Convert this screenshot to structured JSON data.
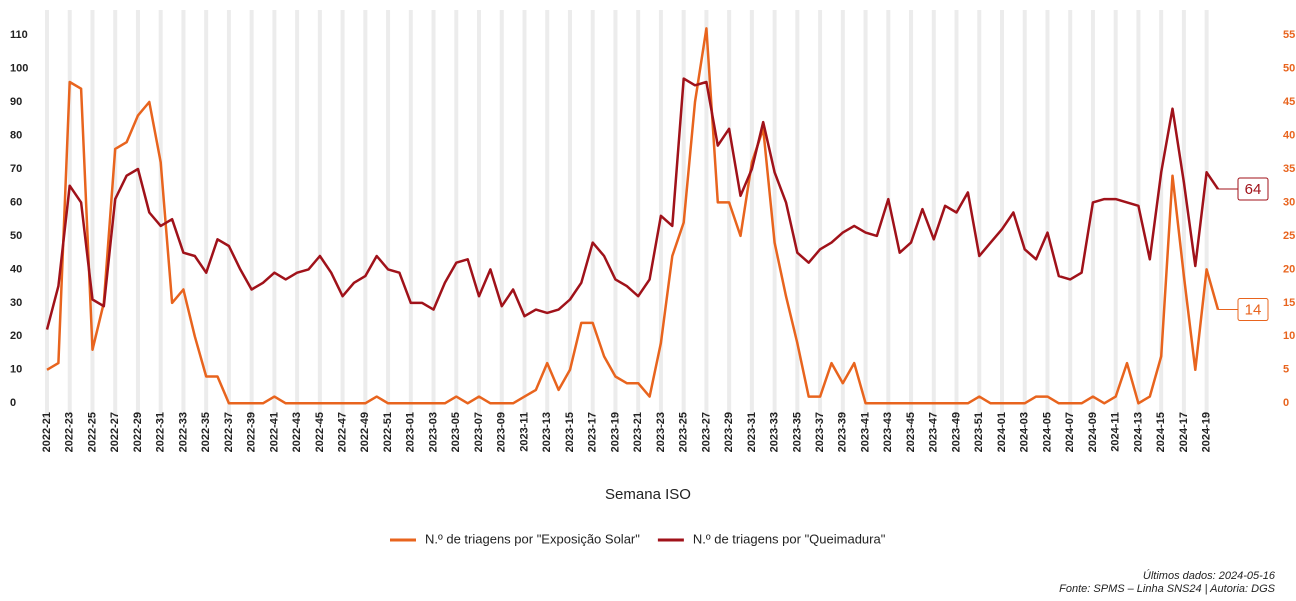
{
  "chart_data": {
    "type": "line",
    "x_label": "Semana ISO",
    "categories": [
      "2022-21",
      null,
      "2022-23",
      null,
      "2022-25",
      null,
      "2022-27",
      null,
      "2022-29",
      null,
      "2022-31",
      null,
      "2022-33",
      null,
      "2022-35",
      null,
      "2022-37",
      null,
      "2022-39",
      null,
      "2022-41",
      null,
      "2022-43",
      null,
      "2022-45",
      null,
      "2022-47",
      null,
      "2022-49",
      null,
      "2022-51",
      null,
      "2023-01",
      null,
      "2023-03",
      null,
      "2023-05",
      null,
      "2023-07",
      null,
      "2023-09",
      null,
      "2023-11",
      null,
      "2023-13",
      null,
      "2023-15",
      null,
      "2023-17",
      null,
      "2023-19",
      null,
      "2023-21",
      null,
      "2023-23",
      null,
      "2023-25",
      null,
      "2023-27",
      null,
      "2023-29",
      null,
      "2023-31",
      null,
      "2023-33",
      null,
      "2023-35",
      null,
      "2023-37",
      null,
      "2023-39",
      null,
      "2023-41",
      null,
      "2023-43",
      null,
      "2023-45",
      null,
      "2023-47",
      null,
      "2023-49",
      null,
      "2023-51",
      null,
      "2024-01",
      null,
      "2024-03",
      null,
      "2024-05",
      null,
      "2024-07",
      null,
      "2024-09",
      null,
      "2024-11",
      null,
      "2024-13",
      null,
      "2024-15",
      null,
      "2024-17",
      null,
      "2024-19",
      null
    ],
    "series": [
      {
        "name": "N.º de triagens por \"Exposição Solar\"",
        "color": "#e8641e",
        "axis": "y2",
        "values": [
          5,
          6,
          48,
          47,
          8,
          15,
          38,
          39,
          43,
          45,
          36,
          15,
          17,
          10,
          4,
          4,
          0,
          0,
          0,
          0,
          1,
          0,
          0,
          0,
          0,
          0,
          0,
          0,
          0,
          1,
          0,
          0,
          0,
          0,
          0,
          0,
          1,
          0,
          1,
          0,
          0,
          0,
          1,
          2,
          6,
          2,
          5,
          12,
          12,
          7,
          4,
          3,
          3,
          1,
          9,
          22,
          27,
          45,
          56,
          30,
          30,
          25,
          36,
          41,
          24,
          16,
          9,
          1,
          1,
          6,
          3,
          6,
          0,
          0,
          0,
          0,
          0,
          0,
          0,
          0,
          0,
          0,
          1,
          0,
          0,
          0,
          0,
          1,
          1,
          0,
          0,
          0,
          1,
          0,
          1,
          6,
          0,
          1,
          7,
          34,
          19,
          5,
          20,
          14
        ]
      },
      {
        "name": "N.º de triagens por \"Queimadura\"",
        "color": "#a0121a",
        "values": [
          22,
          35,
          65,
          60,
          31,
          29,
          61,
          68,
          70,
          57,
          53,
          55,
          45,
          44,
          39,
          49,
          47,
          40,
          34,
          36,
          39,
          37,
          39,
          40,
          44,
          39,
          32,
          36,
          38,
          44,
          40,
          39,
          30,
          30,
          28,
          36,
          42,
          43,
          32,
          40,
          29,
          34,
          26,
          28,
          27,
          28,
          31,
          36,
          48,
          44,
          37,
          35,
          32,
          37,
          56,
          53,
          97,
          95,
          96,
          77,
          82,
          62,
          70,
          84,
          69,
          60,
          45,
          42,
          46,
          48,
          51,
          53,
          51,
          50,
          61,
          45,
          48,
          58,
          49,
          59,
          57,
          63,
          44,
          48,
          52,
          57,
          46,
          43,
          51,
          38,
          37,
          39,
          60,
          61,
          61,
          60,
          59,
          43,
          69,
          88,
          66,
          41,
          69,
          64
        ]
      }
    ],
    "ylim": [
      -5,
      117.5
    ],
    "yticks": [
      0,
      10,
      20,
      30,
      40,
      50,
      60,
      70,
      80,
      90,
      100,
      110
    ],
    "y2lim": [
      -2.5,
      58.75
    ],
    "y2ticks": [
      0,
      5,
      10,
      15,
      20,
      25,
      30,
      35,
      40,
      45,
      50,
      55
    ],
    "grid": "x",
    "legend": "bottom",
    "footnotes": [
      "Últimos dados: 2024-05-16",
      "Fonte: SPMS – Linha SNS24 | Autoria: DGS"
    ]
  }
}
